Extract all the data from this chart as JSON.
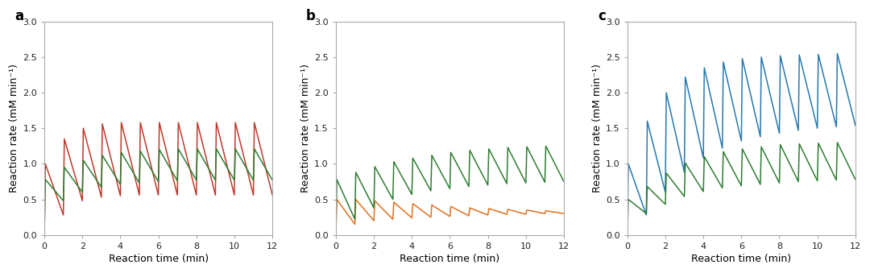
{
  "panels": [
    "a",
    "b",
    "c"
  ],
  "xlabel": "Reaction time (min)",
  "ylabel": "Reaction rate (mM min⁻¹)",
  "xlim": [
    0,
    12
  ],
  "ylim": [
    0,
    3.0
  ],
  "yticks": [
    0,
    0.5,
    1.0,
    1.5,
    2.0,
    2.5,
    3.0
  ],
  "xticks": [
    0,
    2,
    4,
    6,
    8,
    10,
    12
  ],
  "panel_a": {
    "colors": [
      "#c0392b",
      "#2e7d32"
    ]
  },
  "panel_b": {
    "colors": [
      "#e07020",
      "#2e7d32"
    ]
  },
  "panel_c": {
    "colors": [
      "#2778b0",
      "#2e7d32"
    ]
  },
  "figsize": [
    10.8,
    3.39
  ],
  "dpi": 100,
  "panel_a_red_peaks": [
    1.0,
    1.35,
    1.5,
    1.56,
    1.58,
    1.58,
    1.58,
    1.58,
    1.58,
    1.58,
    1.58,
    1.58
  ],
  "panel_a_red_mins": [
    0.28,
    0.48,
    0.53,
    0.55,
    0.56,
    0.56,
    0.56,
    0.56,
    0.56,
    0.56,
    0.56,
    0.56
  ],
  "panel_a_grn_peaks": [
    0.78,
    0.95,
    1.05,
    1.12,
    1.16,
    1.18,
    1.2,
    1.21,
    1.21,
    1.21,
    1.21,
    1.21
  ],
  "panel_a_grn_mins": [
    0.48,
    0.6,
    0.67,
    0.71,
    0.73,
    0.75,
    0.76,
    0.77,
    0.77,
    0.77,
    0.77,
    0.77
  ],
  "panel_b_org_peaks": [
    0.5,
    0.5,
    0.48,
    0.46,
    0.44,
    0.42,
    0.4,
    0.38,
    0.37,
    0.36,
    0.35,
    0.34
  ],
  "panel_b_org_mins": [
    0.15,
    0.2,
    0.22,
    0.24,
    0.25,
    0.26,
    0.27,
    0.28,
    0.29,
    0.29,
    0.3,
    0.3
  ],
  "panel_b_grn_peaks": [
    0.78,
    0.88,
    0.96,
    1.03,
    1.08,
    1.12,
    1.16,
    1.19,
    1.21,
    1.23,
    1.24,
    1.25
  ],
  "panel_b_grn_mins": [
    0.22,
    0.38,
    0.5,
    0.57,
    0.62,
    0.65,
    0.68,
    0.7,
    0.72,
    0.73,
    0.74,
    0.75
  ],
  "panel_c_blu_peaks": [
    1.0,
    1.6,
    2.0,
    2.22,
    2.35,
    2.43,
    2.48,
    2.5,
    2.52,
    2.53,
    2.54,
    2.55
  ],
  "panel_c_blu_mins": [
    0.28,
    0.6,
    0.88,
    1.08,
    1.22,
    1.32,
    1.38,
    1.43,
    1.47,
    1.5,
    1.52,
    1.54
  ],
  "panel_c_grn_peaks": [
    0.5,
    0.68,
    0.87,
    1.01,
    1.1,
    1.17,
    1.21,
    1.24,
    1.27,
    1.28,
    1.29,
    1.3
  ],
  "panel_c_grn_mins": [
    0.3,
    0.43,
    0.54,
    0.61,
    0.66,
    0.69,
    0.71,
    0.73,
    0.75,
    0.76,
    0.77,
    0.78
  ]
}
